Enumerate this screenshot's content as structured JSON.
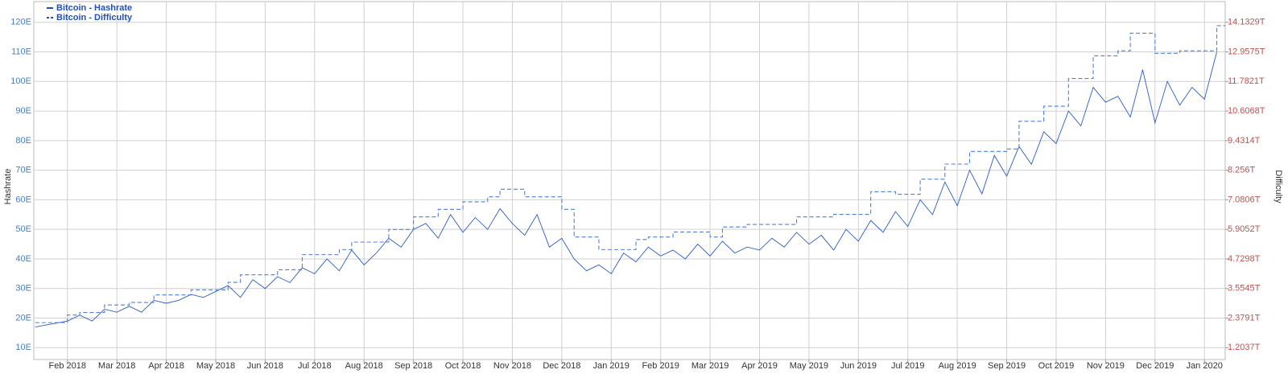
{
  "chart_data": {
    "type": "line",
    "legend": "top-left",
    "grid": true,
    "ylabel": "Hashrate",
    "y2label": "Difficulty",
    "xlim": [
      -0.68,
      23.42
    ],
    "xticks": [
      {
        "value": 0,
        "label": "Feb 2018"
      },
      {
        "value": 1,
        "label": "Mar 2018"
      },
      {
        "value": 2,
        "label": "Apr 2018"
      },
      {
        "value": 3,
        "label": "May 2018"
      },
      {
        "value": 4,
        "label": "Jun 2018"
      },
      {
        "value": 5,
        "label": "Jul 2018"
      },
      {
        "value": 6,
        "label": "Aug 2018"
      },
      {
        "value": 7,
        "label": "Sep 2018"
      },
      {
        "value": 8,
        "label": "Oct 2018"
      },
      {
        "value": 9,
        "label": "Nov 2018"
      },
      {
        "value": 10,
        "label": "Dec 2018"
      },
      {
        "value": 11,
        "label": "Jan 2019"
      },
      {
        "value": 12,
        "label": "Feb 2019"
      },
      {
        "value": 13,
        "label": "Mar 2019"
      },
      {
        "value": 14,
        "label": "Apr 2019"
      },
      {
        "value": 15,
        "label": "May 2019"
      },
      {
        "value": 16,
        "label": "Jun 2019"
      },
      {
        "value": 17,
        "label": "Jul 2019"
      },
      {
        "value": 18,
        "label": "Aug 2019"
      },
      {
        "value": 19,
        "label": "Sep 2019"
      },
      {
        "value": 20,
        "label": "Oct 2019"
      },
      {
        "value": 21,
        "label": "Nov 2019"
      },
      {
        "value": 22,
        "label": "Dec 2019"
      },
      {
        "value": 23,
        "label": "Jan 2020"
      }
    ],
    "ylim": [
      6,
      127
    ],
    "yticks": [
      {
        "value": 10,
        "label": "10E"
      },
      {
        "value": 20,
        "label": "20E"
      },
      {
        "value": 30,
        "label": "30E"
      },
      {
        "value": 40,
        "label": "40E"
      },
      {
        "value": 50,
        "label": "50E"
      },
      {
        "value": 60,
        "label": "60E"
      },
      {
        "value": 70,
        "label": "70E"
      },
      {
        "value": 80,
        "label": "80E"
      },
      {
        "value": 90,
        "label": "90E"
      },
      {
        "value": 100,
        "label": "100E"
      },
      {
        "value": 110,
        "label": "110E"
      },
      {
        "value": 120,
        "label": "120E"
      }
    ],
    "y2lim": [
      0.7335,
      14.9556
    ],
    "y2ticks": [
      {
        "value": 1.2037,
        "label": "1.2037T"
      },
      {
        "value": 2.3791,
        "label": "2.3791T"
      },
      {
        "value": 3.5545,
        "label": "3.5545T"
      },
      {
        "value": 4.7298,
        "label": "4.7298T"
      },
      {
        "value": 5.9052,
        "label": "5.9052T"
      },
      {
        "value": 7.0806,
        "label": "7.0806T"
      },
      {
        "value": 8.256,
        "label": "8.256T"
      },
      {
        "value": 9.4314,
        "label": "9.4314T"
      },
      {
        "value": 10.6068,
        "label": "10.6068T"
      },
      {
        "value": 11.7821,
        "label": "11.7821T"
      },
      {
        "value": 12.9575,
        "label": "12.9575T"
      },
      {
        "value": 14.1329,
        "label": "14.1329T"
      }
    ],
    "x": [
      -0.65,
      0,
      0.25,
      0.5,
      0.75,
      1,
      1.25,
      1.5,
      1.75,
      2,
      2.25,
      2.5,
      2.75,
      3,
      3.25,
      3.5,
      3.75,
      4,
      4.25,
      4.5,
      4.75,
      5,
      5.25,
      5.5,
      5.75,
      6,
      6.25,
      6.5,
      6.75,
      7,
      7.25,
      7.5,
      7.75,
      8,
      8.25,
      8.5,
      8.75,
      9,
      9.25,
      9.5,
      9.75,
      10,
      10.25,
      10.5,
      10.75,
      11,
      11.25,
      11.5,
      11.75,
      12,
      12.25,
      12.5,
      12.75,
      13,
      13.25,
      13.5,
      13.75,
      14,
      14.25,
      14.5,
      14.75,
      15,
      15.25,
      15.5,
      15.75,
      16,
      16.25,
      16.5,
      16.75,
      17,
      17.25,
      17.5,
      17.75,
      18,
      18.25,
      18.5,
      18.75,
      19,
      19.25,
      19.5,
      19.75,
      20,
      20.25,
      20.5,
      20.75,
      21,
      21.25,
      21.5,
      21.75,
      22,
      22.25,
      22.5,
      22.75,
      23,
      23.25
    ],
    "series": [
      {
        "name": "Bitcoin - Hashrate",
        "color": "#2a5cc8",
        "axis": "y",
        "line_style": "solid",
        "values": [
          17,
          19,
          21,
          19,
          23,
          22,
          24,
          22,
          26,
          25,
          26,
          28,
          27,
          29,
          31,
          27,
          33,
          30,
          34,
          32,
          37,
          35,
          40,
          36,
          43,
          38,
          42,
          47,
          44,
          50,
          52,
          47,
          55,
          49,
          54,
          50,
          57,
          52,
          48,
          55,
          44,
          47,
          40,
          36,
          38,
          35,
          42,
          39,
          44,
          41,
          43,
          40,
          45,
          41,
          46,
          42,
          44,
          43,
          47,
          44,
          49,
          45,
          48,
          43,
          50,
          46,
          53,
          49,
          56,
          51,
          60,
          55,
          66,
          58,
          70,
          62,
          75,
          68,
          78,
          72,
          83,
          79,
          90,
          85,
          98,
          93,
          95,
          88,
          104,
          86,
          100,
          92,
          98,
          94,
          110
        ]
      },
      {
        "name": "Bitcoin - Difficulty",
        "color": "#4f7fdc",
        "axis": "y2",
        "line_style": "dashed",
        "values": [
          2.2,
          2.5,
          2.6,
          2.6,
          2.9,
          2.9,
          3.0,
          3.0,
          3.3,
          3.3,
          3.3,
          3.5,
          3.5,
          3.5,
          3.8,
          4.1,
          4.1,
          4.1,
          4.3,
          4.3,
          4.9,
          4.9,
          4.9,
          5.1,
          5.4,
          5.4,
          5.4,
          5.9,
          5.9,
          6.4,
          6.4,
          6.7,
          6.7,
          7.0,
          7.0,
          7.2,
          7.5,
          7.5,
          7.2,
          7.2,
          7.2,
          6.7,
          5.6,
          5.6,
          5.1,
          5.1,
          5.1,
          5.5,
          5.6,
          5.6,
          5.8,
          5.8,
          5.8,
          5.6,
          6.0,
          6.0,
          6.1,
          6.1,
          6.1,
          6.1,
          6.4,
          6.4,
          6.4,
          6.5,
          6.5,
          6.5,
          7.4,
          7.4,
          7.3,
          7.3,
          7.9,
          7.9,
          8.5,
          8.5,
          9.0,
          9.0,
          9.0,
          9.1,
          10.2,
          10.2,
          10.8,
          10.8,
          11.9,
          11.9,
          12.8,
          12.8,
          13.0,
          13.7,
          13.7,
          12.9,
          12.9,
          13.0,
          13.0,
          13.0,
          14.0
        ]
      }
    ]
  }
}
